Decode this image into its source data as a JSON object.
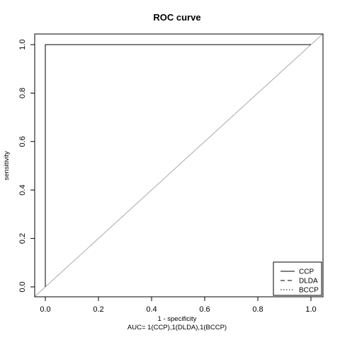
{
  "chart_data": {
    "type": "line",
    "title": "ROC curve",
    "xlabel": "1 - specificity",
    "ylabel": "sensitivity",
    "subtitle": "AUC= 1(CCP),1(DLDA),1(BCCP)",
    "xlim": [
      0,
      1
    ],
    "ylim": [
      0,
      1
    ],
    "xticks": [
      0.0,
      0.2,
      0.4,
      0.6,
      0.8,
      1.0
    ],
    "yticks": [
      0.0,
      0.2,
      0.4,
      0.6,
      0.8,
      1.0
    ],
    "xtick_labels": [
      "0.0",
      "0.2",
      "0.4",
      "0.6",
      "0.8",
      "1.0"
    ],
    "ytick_labels": [
      "0.0",
      "0.2",
      "0.4",
      "0.6",
      "0.8",
      "1.0"
    ],
    "grid": false,
    "legend_position": "bottom-right",
    "series": [
      {
        "name": "CCP",
        "dash": "solid",
        "x": [
          0,
          0,
          1
        ],
        "y": [
          0,
          1,
          1
        ]
      },
      {
        "name": "DLDA",
        "dash": "dashed",
        "x": [
          0,
          0,
          1
        ],
        "y": [
          0,
          1,
          1
        ]
      },
      {
        "name": "BCCP",
        "dash": "dotted",
        "x": [
          0,
          0,
          1
        ],
        "y": [
          0,
          1,
          1
        ]
      }
    ],
    "reference_line": {
      "x": [
        0,
        1
      ],
      "y": [
        0,
        1
      ],
      "color": "#aaaaaa"
    }
  }
}
